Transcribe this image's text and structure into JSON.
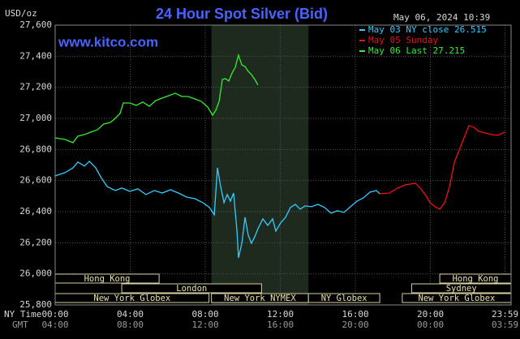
{
  "chart_data": {
    "type": "line",
    "title": "24 Hour Spot Silver (Bid)",
    "y_label": "USD/oz",
    "watermark": "www.kitco.com",
    "timestamp": "May 06, 2024 10:39",
    "x_label": "NY Time",
    "x2_label": "GMT",
    "xlim": [
      0,
      24.3
    ],
    "xticks": [
      {
        "value": 0,
        "label": "00:00"
      },
      {
        "value": 4,
        "label": "04:00"
      },
      {
        "value": 8,
        "label": "08:00"
      },
      {
        "value": 12,
        "label": "12:00"
      },
      {
        "value": 16,
        "label": "16:00"
      },
      {
        "value": 20,
        "label": "20:00"
      },
      {
        "value": 23.98,
        "label": "23:59"
      }
    ],
    "x2ticks": [
      {
        "value": 0,
        "label": "04:00"
      },
      {
        "value": 4,
        "label": "08:00"
      },
      {
        "value": 8,
        "label": "12:00"
      },
      {
        "value": 12,
        "label": "16:00"
      },
      {
        "value": 16,
        "label": "20:00"
      },
      {
        "value": 20,
        "label": "00:00"
      },
      {
        "value": 23.98,
        "label": "03:59"
      }
    ],
    "ylim": [
      25800,
      27600
    ],
    "yticks": [
      {
        "value": 25800,
        "label": "25,800"
      },
      {
        "value": 26000,
        "label": "26,000"
      },
      {
        "value": 26200,
        "label": "26,200"
      },
      {
        "value": 26400,
        "label": "26,400"
      },
      {
        "value": 26600,
        "label": "26,600"
      },
      {
        "value": 26800,
        "label": "26,800"
      },
      {
        "value": 27000,
        "label": "27,000"
      },
      {
        "value": 27200,
        "label": "27,200"
      },
      {
        "value": 27400,
        "label": "27,400"
      },
      {
        "value": 27600,
        "label": "27,600"
      }
    ],
    "grid": true,
    "highlight": [
      8.33,
      13.5
    ],
    "series": [
      {
        "name": "May 03 NY close 26.515",
        "color": "#33ccff",
        "x": [
          0,
          0.52,
          0.95,
          1.21,
          1.56,
          1.82,
          2.16,
          2.42,
          2.77,
          3.2,
          3.55,
          3.98,
          4.41,
          4.84,
          5.28,
          5.71,
          6.14,
          6.57,
          7.0,
          7.44,
          7.87,
          8.22,
          8.48,
          8.65,
          8.82,
          9.0,
          9.17,
          9.34,
          9.51,
          9.69,
          9.77,
          9.95,
          10.12,
          10.29,
          10.46,
          10.64,
          10.81,
          11.07,
          11.33,
          11.59,
          11.76,
          12.02,
          12.28,
          12.54,
          12.8,
          13.06,
          13.32,
          13.66,
          14.01,
          14.36,
          14.7,
          15.05,
          15.39,
          15.74,
          16.09,
          16.43,
          16.78,
          17.12,
          17.3
        ],
        "values": [
          26630,
          26651,
          26682,
          26719,
          26693,
          26724,
          26682,
          26625,
          26562,
          26536,
          26552,
          26531,
          26547,
          26510,
          26536,
          26520,
          26541,
          26520,
          26494,
          26484,
          26458,
          26427,
          26380,
          26682,
          26562,
          26458,
          26510,
          26468,
          26520,
          26275,
          26103,
          26197,
          26364,
          26249,
          26197,
          26239,
          26291,
          26354,
          26312,
          26354,
          26275,
          26328,
          26364,
          26427,
          26447,
          26416,
          26437,
          26432,
          26447,
          26427,
          26390,
          26406,
          26395,
          26432,
          26468,
          26489,
          26526,
          26536,
          26515
        ]
      },
      {
        "name": "May 05 Sunday",
        "color": "#ee1111",
        "x": [
          17.3,
          17.82,
          18.25,
          18.68,
          19.2,
          19.46,
          19.72,
          19.98,
          20.24,
          20.5,
          20.76,
          21.02,
          21.28,
          21.54,
          21.79,
          22.05,
          22.31,
          22.57,
          22.92,
          23.26,
          23.61,
          23.96
        ],
        "values": [
          26515,
          26520,
          26552,
          26573,
          26583,
          26552,
          26510,
          26458,
          26432,
          26416,
          26458,
          26562,
          26719,
          26797,
          26875,
          26953,
          26943,
          26917,
          26906,
          26896,
          26891,
          26912
        ]
      },
      {
        "name": "May 06 Last 27.215",
        "color": "#33ee33",
        "x": [
          0,
          0.52,
          0.95,
          1.21,
          1.56,
          1.9,
          2.25,
          2.59,
          2.94,
          3.2,
          3.46,
          3.63,
          3.98,
          4.32,
          4.67,
          5.02,
          5.36,
          5.71,
          6.05,
          6.4,
          6.75,
          7.09,
          7.44,
          7.78,
          8.13,
          8.39,
          8.56,
          8.74,
          8.91,
          9.08,
          9.25,
          9.43,
          9.6,
          9.77,
          9.95,
          10.12,
          10.29,
          10.46,
          10.64,
          10.81
        ],
        "values": [
          26875,
          26865,
          26844,
          26886,
          26896,
          26912,
          26927,
          26964,
          26974,
          27000,
          27032,
          27099,
          27099,
          27084,
          27105,
          27078,
          27115,
          27131,
          27146,
          27162,
          27141,
          27141,
          27125,
          27110,
          27073,
          27021,
          27052,
          27110,
          27251,
          27256,
          27240,
          27292,
          27329,
          27407,
          27344,
          27334,
          27303,
          27282,
          27251,
          27215
        ]
      }
    ],
    "sessions": [
      {
        "label": "Hong Kong",
        "start": 0,
        "end": 5.54
      },
      {
        "label": "Hong Kong",
        "start": 20.5,
        "end": 24.3
      },
      {
        "label": "London",
        "start": 3.55,
        "end": 11.0
      },
      {
        "label": "Sydney",
        "start": 19.0,
        "end": 24.3
      },
      {
        "label": "New York Globex",
        "start": 0,
        "end": 8.2
      },
      {
        "label": "New York NYMEX",
        "start": 8.33,
        "end": 13.5
      },
      {
        "label": "NY Globex",
        "start": 13.5,
        "end": 17.3
      },
      {
        "label": "New York Globex",
        "start": 18.5,
        "end": 24.3
      }
    ]
  }
}
